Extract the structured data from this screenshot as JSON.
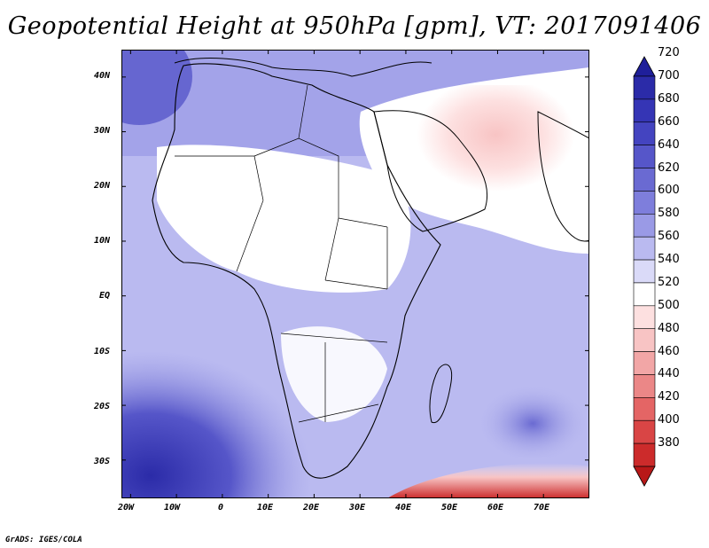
{
  "title": "Geopotential Height at 950hPa [gpm], VT: 2017091406",
  "credit": "GrADS: IGES/COLA",
  "map": {
    "variable": "Geopotential Height",
    "level": "950hPa",
    "units": "gpm",
    "valid_time": "2017091406",
    "lat_labels": [
      "40N",
      "30N",
      "20N",
      "10N",
      "EQ",
      "10S",
      "20S",
      "30S"
    ],
    "lon_labels": [
      "20W",
      "10W",
      "0",
      "10E",
      "20E",
      "30E",
      "40E",
      "50E",
      "60E",
      "70E"
    ],
    "lat_range": [
      -37,
      45
    ],
    "lon_range": [
      -22,
      80
    ]
  },
  "colorbar": {
    "levels": [
      "720",
      "700",
      "680",
      "660",
      "640",
      "620",
      "600",
      "580",
      "560",
      "540",
      "520",
      "500",
      "480",
      "460",
      "440",
      "420",
      "400",
      "380"
    ],
    "colors": [
      "#1f1f9a",
      "#2b2ba8",
      "#3535b5",
      "#4444c0",
      "#5656c9",
      "#6a6ad2",
      "#7e7edc",
      "#9a9ae6",
      "#babaf0",
      "#dadaf8",
      "#ffffff",
      "#fde0e0",
      "#f8c4c4",
      "#f2a6a6",
      "#eb8787",
      "#e46565",
      "#d94545",
      "#cc2b2b",
      "#b81818"
    ]
  }
}
